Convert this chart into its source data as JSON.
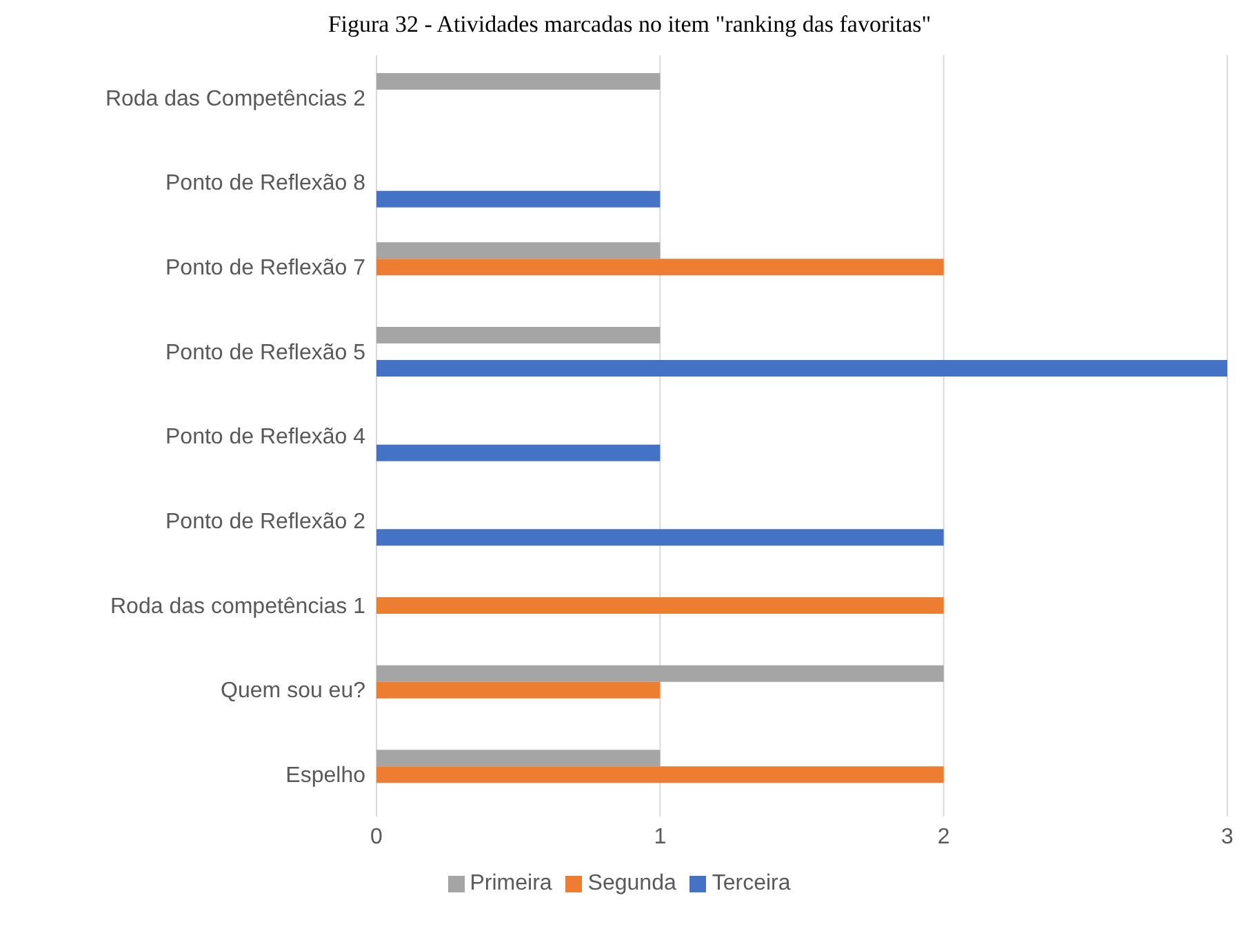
{
  "chart_data": {
    "type": "bar",
    "orientation": "horizontal",
    "title": "Figura 32 - Atividades marcadas no item \"ranking das favoritas\"",
    "categories": [
      "Roda das Competências 2",
      "Ponto de Reflexão 8",
      "Ponto de Reflexão 7",
      "Ponto de Reflexão 5",
      "Ponto de Reflexão 4",
      "Ponto de Reflexão 2",
      "Roda das competências 1",
      "Quem sou eu?",
      "Espelho"
    ],
    "series": [
      {
        "name": "Primeira",
        "color": "#a5a5a5",
        "values": [
          1,
          null,
          1,
          1,
          null,
          null,
          null,
          2,
          1
        ]
      },
      {
        "name": "Segunda",
        "color": "#ed7d31",
        "values": [
          null,
          null,
          2,
          null,
          null,
          null,
          2,
          1,
          2
        ]
      },
      {
        "name": "Terceira",
        "color": "#4472c4",
        "values": [
          null,
          1,
          null,
          3,
          1,
          2,
          null,
          null,
          null
        ]
      }
    ],
    "xlim": [
      0,
      3
    ],
    "xticks": [
      0,
      1,
      2,
      3
    ],
    "grid": "x",
    "legend": "bottom"
  }
}
